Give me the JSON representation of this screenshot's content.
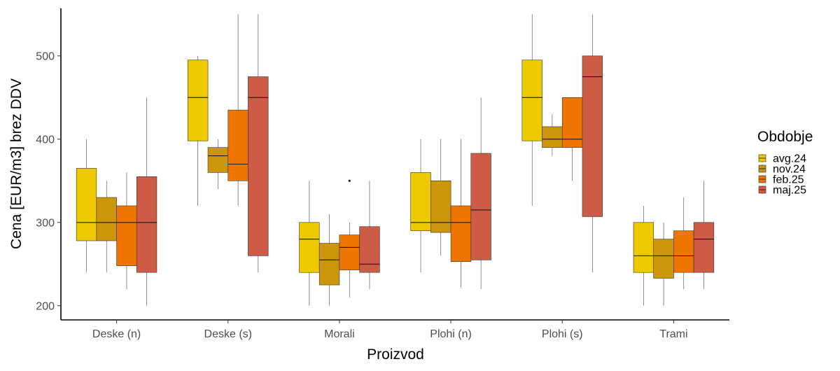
{
  "chart_data": {
    "type": "boxplot",
    "title": "",
    "xlabel": "Proizvod",
    "ylabel": "Cena [EUR/m3] brez DDV",
    "ylim": [
      183,
      557
    ],
    "yticks": [
      200,
      300,
      400,
      500
    ],
    "grid": false,
    "legend_position": "right",
    "legend_title": "Obdobje",
    "categories": [
      "Deske (n)",
      "Deske (s)",
      "Morali",
      "Plohi (n)",
      "Plohi (s)",
      "Trami"
    ],
    "series": [
      {
        "name": "avg.24",
        "color": "#EEC900",
        "boxes": [
          {
            "min": 240,
            "q1": 278,
            "median": 300,
            "q3": 365,
            "max": 400,
            "outliers": []
          },
          {
            "min": 320,
            "q1": 398,
            "median": 450,
            "q3": 495,
            "max": 500,
            "outliers": []
          },
          {
            "min": 200,
            "q1": 240,
            "median": 280,
            "q3": 300,
            "max": 350,
            "outliers": []
          },
          {
            "min": 240,
            "q1": 290,
            "median": 300,
            "q3": 360,
            "max": 400,
            "outliers": []
          },
          {
            "min": 320,
            "q1": 398,
            "median": 450,
            "q3": 495,
            "max": 550,
            "outliers": []
          },
          {
            "min": 200,
            "q1": 240,
            "median": 260,
            "q3": 300,
            "max": 320,
            "outliers": []
          }
        ]
      },
      {
        "name": "nov.24",
        "color": "#CD950C",
        "boxes": [
          {
            "min": 240,
            "q1": 278,
            "median": 300,
            "q3": 330,
            "max": 350,
            "outliers": []
          },
          {
            "min": 340,
            "q1": 360,
            "median": 380,
            "q3": 390,
            "max": 400,
            "outliers": []
          },
          {
            "min": 200,
            "q1": 225,
            "median": 255,
            "q3": 275,
            "max": 310,
            "outliers": []
          },
          {
            "min": 260,
            "q1": 288,
            "median": 300,
            "q3": 350,
            "max": 400,
            "outliers": []
          },
          {
            "min": 380,
            "q1": 390,
            "median": 400,
            "q3": 415,
            "max": 430,
            "outliers": []
          },
          {
            "min": 200,
            "q1": 233,
            "median": 260,
            "q3": 280,
            "max": 300,
            "outliers": []
          }
        ]
      },
      {
        "name": "feb.25",
        "color": "#EE7600",
        "boxes": [
          {
            "min": 220,
            "q1": 248,
            "median": 300,
            "q3": 320,
            "max": 360,
            "outliers": []
          },
          {
            "min": 320,
            "q1": 350,
            "median": 370,
            "q3": 435,
            "max": 550,
            "outliers": []
          },
          {
            "min": 210,
            "q1": 243,
            "median": 270,
            "q3": 285,
            "max": 300,
            "outliers": [
              350
            ]
          },
          {
            "min": 222,
            "q1": 253,
            "median": 300,
            "q3": 320,
            "max": 400,
            "outliers": []
          },
          {
            "min": 350,
            "q1": 390,
            "median": 400,
            "q3": 450,
            "max": 450,
            "outliers": []
          },
          {
            "min": 220,
            "q1": 240,
            "median": 260,
            "q3": 290,
            "max": 330,
            "outliers": []
          }
        ]
      },
      {
        "name": "maj.25",
        "color": "#CD5B45",
        "boxes": [
          {
            "min": 200,
            "q1": 240,
            "median": 300,
            "q3": 355,
            "max": 450,
            "outliers": []
          },
          {
            "min": 240,
            "q1": 260,
            "median": 450,
            "q3": 475,
            "max": 550,
            "outliers": []
          },
          {
            "min": 220,
            "q1": 240,
            "median": 250,
            "q3": 295,
            "max": 350,
            "outliers": []
          },
          {
            "min": 220,
            "q1": 255,
            "median": 315,
            "q3": 383,
            "max": 450,
            "outliers": []
          },
          {
            "min": 240,
            "q1": 307,
            "median": 475,
            "q3": 500,
            "max": 550,
            "outliers": []
          },
          {
            "min": 220,
            "q1": 240,
            "median": 280,
            "q3": 300,
            "max": 350,
            "outliers": []
          }
        ]
      }
    ]
  }
}
